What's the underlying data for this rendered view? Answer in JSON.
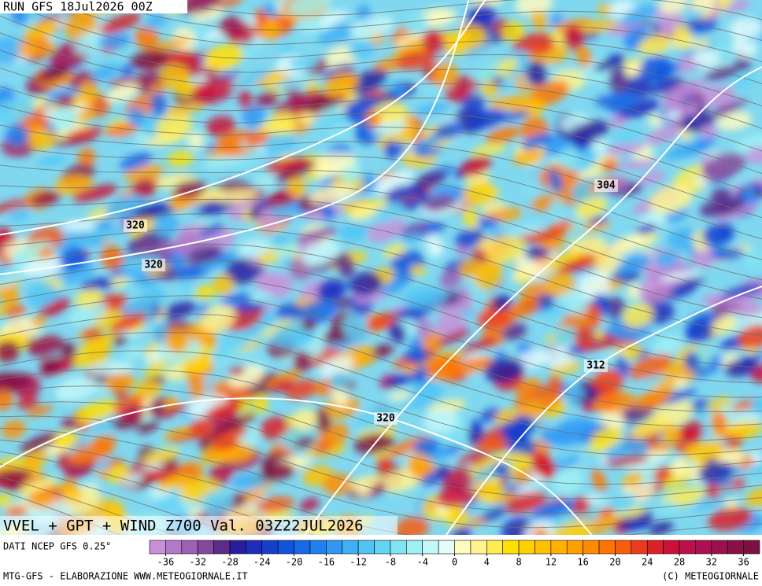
{
  "header": {
    "run": "RUN GFS 18Jul2026 00Z"
  },
  "map": {
    "title": "VVEL + GPT + WIND Z700 Val. 03Z22JUL2026",
    "contour_labels": [
      "320",
      "320",
      "304",
      "312",
      "320"
    ]
  },
  "footer": {
    "source": "DATI NCEP GFS 0.25°",
    "credit": "MTG-GFS - ELABORAZIONE WWW.METEOGIORNALE.IT",
    "copyright": "(C) METEOGIORNALE"
  },
  "colorbar": {
    "lim": [
      -38,
      38
    ],
    "ticks": [
      -36,
      -32,
      -28,
      -24,
      -20,
      -16,
      -12,
      -8,
      -4,
      0,
      4,
      8,
      12,
      16,
      20,
      24,
      28,
      32,
      36
    ],
    "colors": [
      "#c890d8",
      "#b478c8",
      "#9c60b4",
      "#84489c",
      "#5c2c88",
      "#2a1c9c",
      "#1c2cbc",
      "#1440cc",
      "#1054dc",
      "#1868e8",
      "#2080f0",
      "#3098f4",
      "#40b0f4",
      "#50c4f4",
      "#64d4f4",
      "#80e4f4",
      "#a0f0f4",
      "#c4f8f8",
      "#e4fcfc",
      "#fffcc0",
      "#fff490",
      "#ffec50",
      "#ffe000",
      "#ffd000",
      "#ffc000",
      "#ffb000",
      "#ffa000",
      "#ff8c00",
      "#ff7400",
      "#f85c10",
      "#ec3c20",
      "#dc2028",
      "#cc1038",
      "#bc1048",
      "#ac1050",
      "#9c1050",
      "#8c1048",
      "#7c1040"
    ]
  }
}
